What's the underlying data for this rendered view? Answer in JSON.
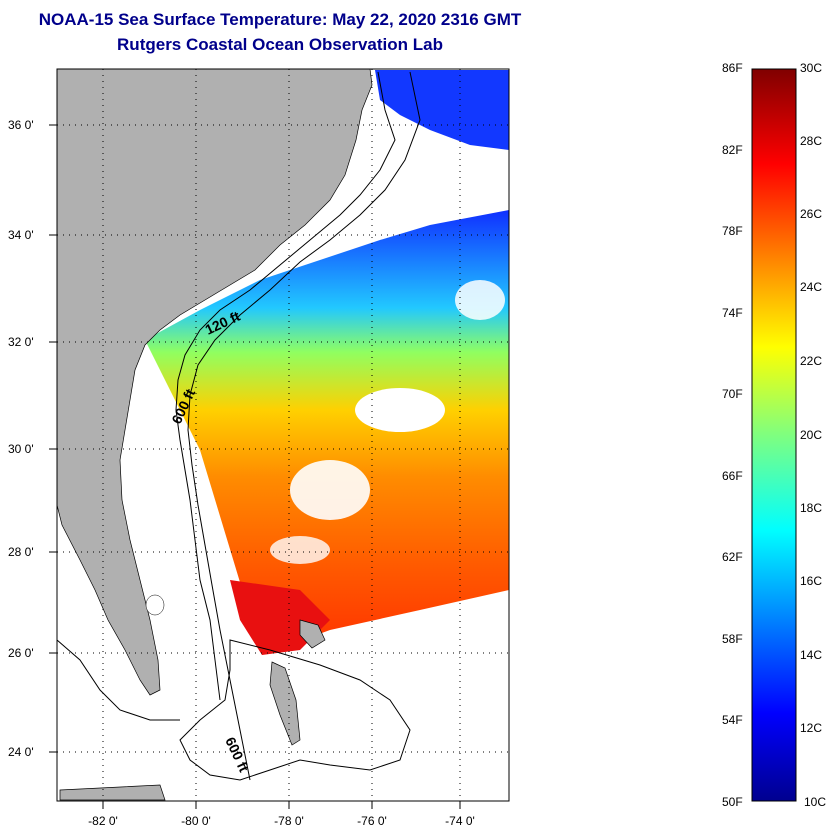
{
  "title": "NOAA-15 Sea Surface Temperature:  May 22, 2020 2316 GMT",
  "subtitle": "Rutgers Coastal Ocean Observation Lab",
  "map": {
    "lat_ticks": [
      "36 0'",
      "34 0'",
      "32 0'",
      "30 0'",
      "28 0'",
      "26 0'",
      "24 0'"
    ],
    "lon_ticks": [
      "-82 0'",
      "-80 0'",
      "-78 0'",
      "-76 0'",
      "-74 0'"
    ],
    "depth_labels": [
      "120 ft",
      "600 ft",
      "600 ft"
    ],
    "land_color": "#b0b0b0",
    "cloud_color": "#ffffff"
  },
  "colorbar": {
    "fahrenheit_labels": [
      "86F",
      "82F",
      "78F",
      "74F",
      "70F",
      "66F",
      "62F",
      "58F",
      "54F",
      "50F"
    ],
    "celsius_labels": [
      "30C",
      "28C",
      "26C",
      "24C",
      "22C",
      "20C",
      "18C",
      "16C",
      "14C",
      "12C",
      "10C"
    ],
    "colormap": "jet",
    "range_c": [
      10,
      30
    ]
  }
}
